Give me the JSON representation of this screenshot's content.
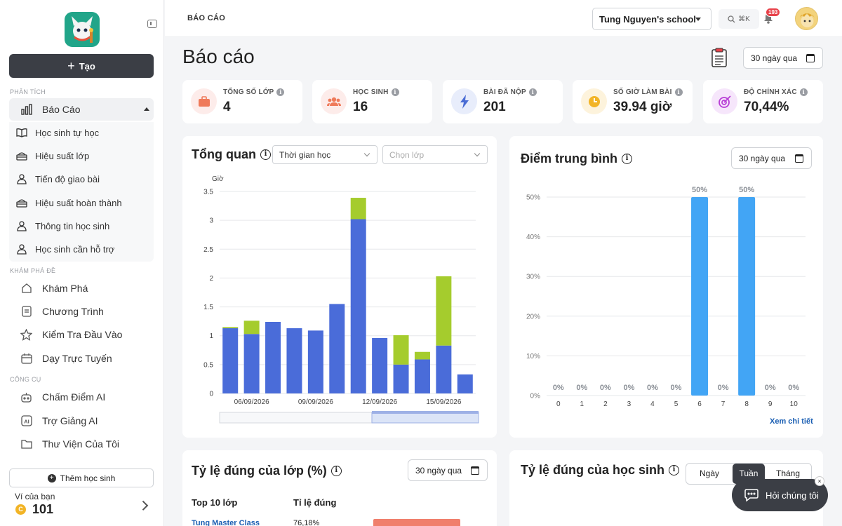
{
  "sidebar": {
    "create_label": "Tạo",
    "sections": {
      "analysis": "PHÂN TÍCH",
      "explore": "KHÁM PHÁ ĐỀ",
      "tools": "CÔNG CỤ"
    },
    "report": {
      "label": "Báo Cáo",
      "icon": "bar-chart-icon"
    },
    "report_items": [
      {
        "label": "Học sinh tự học",
        "icon": "book-icon"
      },
      {
        "label": "Hiệu suất lớp",
        "icon": "class-icon"
      },
      {
        "label": "Tiến độ giao bài",
        "icon": "users-icon"
      },
      {
        "label": "Hiệu suất hoàn thành",
        "icon": "class-icon"
      },
      {
        "label": "Thông tin học sinh",
        "icon": "users-icon"
      },
      {
        "label": "Học sinh cần hỗ trợ",
        "icon": "users-icon"
      }
    ],
    "explore_items": [
      {
        "label": "Khám Phá",
        "icon": "home-icon"
      },
      {
        "label": "Chương Trình",
        "icon": "document-icon"
      },
      {
        "label": "Kiểm Tra Đầu Vào",
        "icon": "star-icon"
      },
      {
        "label": "Dạy Trực Tuyến",
        "icon": "calendar-icon"
      }
    ],
    "tool_items": [
      {
        "label": "Chấm Điểm AI",
        "icon": "robot-icon"
      },
      {
        "label": "Trợ Giảng AI",
        "icon": "ai-icon"
      },
      {
        "label": "Thư Viện Của Tôi",
        "icon": "folder-icon"
      }
    ],
    "add_student": "Thêm học sinh",
    "wallet_label": "Ví của bạn",
    "coin_symbol": "C",
    "wallet_value": "101"
  },
  "header": {
    "breadcrumb": "BÁO CÁO",
    "school": "Tung Nguyen's school",
    "search_shortcut": "⌘K",
    "notification_count": "193"
  },
  "page": {
    "title": "Báo cáo",
    "date_range": "30 ngày qua"
  },
  "stats": [
    {
      "label": "TỔNG SỐ LỚP",
      "value": "4",
      "color": "#ef7a5a",
      "bg": "#fdecea",
      "icon": "briefcase-icon"
    },
    {
      "label": "HỌC SINH",
      "value": "16",
      "color": "#ef7a5a",
      "bg": "#fdecea",
      "icon": "group-icon"
    },
    {
      "label": "BÀI ĐÃ NỘP",
      "value": "201",
      "color": "#4a6cd4",
      "bg": "#e8edfb",
      "icon": "lightning-icon"
    },
    {
      "label": "SỐ GIỜ LÀM BÀI",
      "value": "39.94 giờ",
      "color": "#f2b426",
      "bg": "#fdf3dc",
      "icon": "clock-icon"
    },
    {
      "label": "ĐỘ CHÍNH XÁC",
      "value": "70,44%",
      "color": "#b83fd6",
      "bg": "#f6e6fb",
      "icon": "target-icon"
    }
  ],
  "overview": {
    "title": "Tổng quan",
    "select_time": "Thời gian học",
    "select_class_placeholder": "Chọn lớp"
  },
  "average": {
    "title": "Điểm trung bình",
    "date_range": "30 ngày qua",
    "link": "Xem chi tiết"
  },
  "class_accuracy": {
    "title": "Tỷ lệ đúng của lớp (%)",
    "date_range": "30 ngày qua",
    "col1": "Top 10 lớp",
    "col2": "Tỉ lệ đúng",
    "rows": [
      {
        "name": "Tung Master Class",
        "value": "76,18%"
      }
    ]
  },
  "student_accuracy": {
    "title": "Tỷ lệ đúng của học sinh",
    "tabs": [
      "Ngày",
      "Tuần",
      "Tháng"
    ],
    "active_tab": "Tuần"
  },
  "help": {
    "label": "Hỏi chúng tôi",
    "close": "×"
  },
  "chart_data": [
    {
      "type": "bar",
      "stacked": true,
      "ylabel": "Giờ",
      "ylim": [
        0,
        3.5
      ],
      "yticks": [
        "0",
        "0.5",
        "1",
        "1.5",
        "2",
        "2.5",
        "3",
        "3.5"
      ],
      "x_tick_labels": [
        "06/09/2026",
        "09/09/2026",
        "12/09/2026",
        "15/09/2026"
      ],
      "x_tick_index": [
        1,
        4,
        7,
        10
      ],
      "series": [
        {
          "color": "#4a6cd9",
          "values": [
            1.13,
            1.03,
            1.24,
            1.13,
            1.09,
            1.55,
            3.02,
            0.96,
            0.5,
            0.59,
            0.83,
            0.33
          ]
        },
        {
          "color": "#a5cc2d",
          "values": [
            0.02,
            0.23,
            0,
            0,
            0,
            0,
            0.37,
            0,
            0.51,
            0.13,
            1.2,
            0
          ]
        }
      ]
    },
    {
      "type": "bar",
      "categories": [
        "0",
        "1",
        "2",
        "3",
        "4",
        "5",
        "6",
        "7",
        "8",
        "9",
        "10"
      ],
      "values": [
        0,
        0,
        0,
        0,
        0,
        0,
        50,
        0,
        50,
        0,
        0
      ],
      "value_labels": [
        "0%",
        "0%",
        "0%",
        "0%",
        "0%",
        "0%",
        "50%",
        "0%",
        "50%",
        "0%",
        "0%"
      ],
      "ylim": [
        0,
        50
      ],
      "yticks": [
        "0%",
        "10%",
        "20%",
        "30%",
        "40%",
        "50%"
      ],
      "color": "#42a5f5"
    }
  ]
}
